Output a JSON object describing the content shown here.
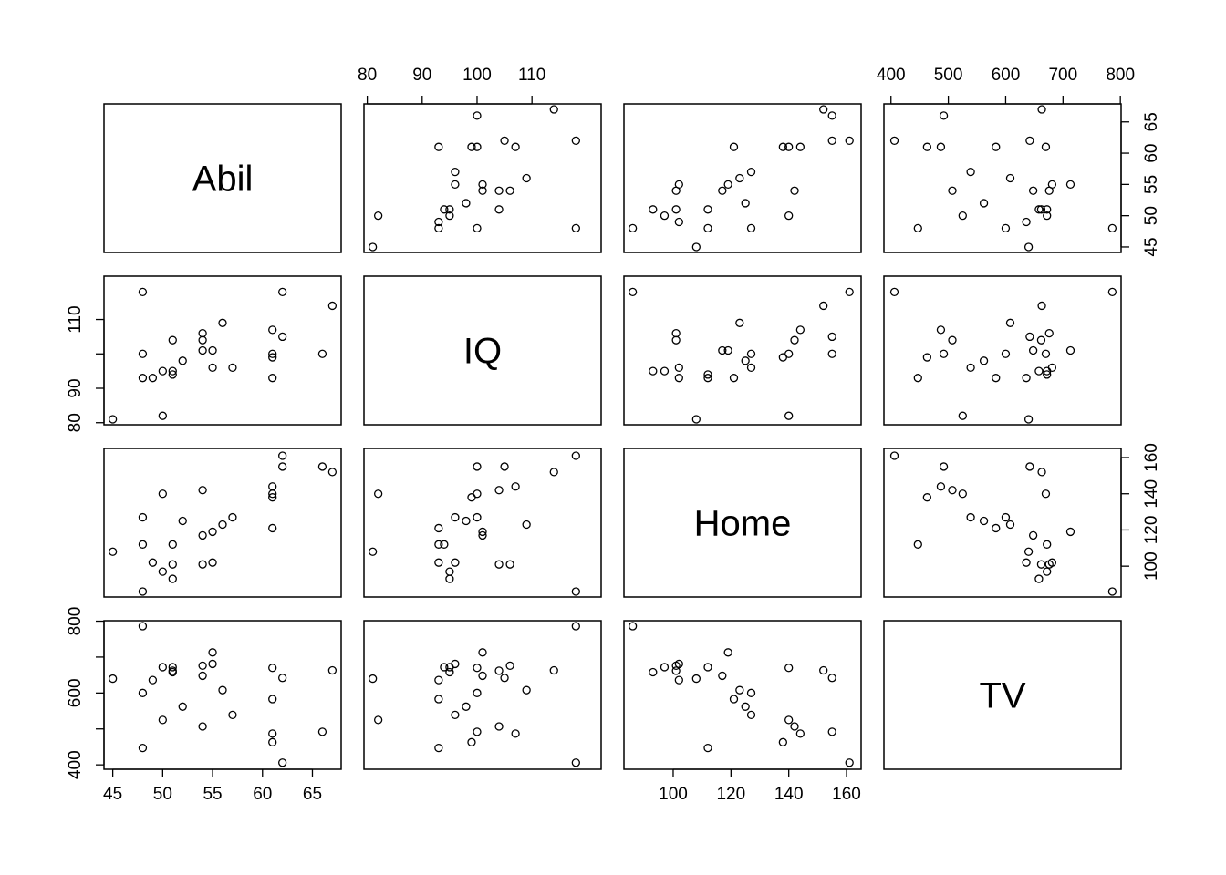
{
  "chart_data": {
    "type": "scatter",
    "variables": [
      "Abil",
      "IQ",
      "Home",
      "TV"
    ],
    "ranges": {
      "Abil": [
        45,
        67
      ],
      "IQ": [
        81,
        121
      ],
      "Home": [
        86,
        162
      ],
      "TV": [
        403,
        786
      ]
    },
    "ticks": {
      "Abil": [
        45,
        50,
        55,
        60,
        65
      ],
      "IQ": [
        80,
        90,
        100,
        110
      ],
      "Home": [
        100,
        120,
        140,
        160
      ],
      "TV": [
        400,
        500,
        600,
        700,
        800
      ]
    },
    "left_ticks": {
      "Abil": [
        45,
        55,
        65
      ],
      "IQ": [
        80,
        90,
        110
      ],
      "Home": [
        100,
        140
      ],
      "TV": [
        400,
        600,
        800
      ]
    },
    "observations": [
      {
        "Abil": 61,
        "IQ": 107,
        "Home": 144,
        "TV": 487
      },
      {
        "Abil": 56,
        "IQ": 109,
        "Home": 123,
        "TV": 608
      },
      {
        "Abil": 45,
        "IQ": 81,
        "Home": 108,
        "TV": 640
      },
      {
        "Abil": 48,
        "IQ": 100,
        "Home": 127,
        "TV": 600
      },
      {
        "Abil": 57,
        "IQ": 96,
        "Home": 127,
        "TV": 539
      },
      {
        "Abil": 51,
        "IQ": 104,
        "Home": 101,
        "TV": 662
      },
      {
        "Abil": 61,
        "IQ": 93,
        "Home": 121,
        "TV": 583
      },
      {
        "Abil": 66,
        "IQ": 100,
        "Home": 155,
        "TV": 492
      },
      {
        "Abil": 49,
        "IQ": 93,
        "Home": 102,
        "TV": 636
      },
      {
        "Abil": 55,
        "IQ": 96,
        "Home": 102,
        "TV": 681
      },
      {
        "Abil": 62,
        "IQ": 118,
        "Home": 161,
        "TV": 406
      },
      {
        "Abil": 48,
        "IQ": 118,
        "Home": 86,
        "TV": 786
      },
      {
        "Abil": 54,
        "IQ": 101,
        "Home": 117,
        "TV": 648
      },
      {
        "Abil": 48,
        "IQ": 93,
        "Home": 112,
        "TV": 447
      },
      {
        "Abil": 50,
        "IQ": 82,
        "Home": 140,
        "TV": 525
      },
      {
        "Abil": 61,
        "IQ": 100,
        "Home": 140,
        "TV": 670
      },
      {
        "Abil": 52,
        "IQ": 98,
        "Home": 125,
        "TV": 562
      },
      {
        "Abil": 51,
        "IQ": 94,
        "Home": 112,
        "TV": 672
      },
      {
        "Abil": 54,
        "IQ": 104,
        "Home": 142,
        "TV": 507
      },
      {
        "Abil": 55,
        "IQ": 101,
        "Home": 119,
        "TV": 713
      },
      {
        "Abil": 62,
        "IQ": 105,
        "Home": 155,
        "TV": 642
      },
      {
        "Abil": 67,
        "IQ": 114,
        "Home": 152,
        "TV": 663
      },
      {
        "Abil": 50,
        "IQ": 95,
        "Home": 97,
        "TV": 672
      },
      {
        "Abil": 54,
        "IQ": 106,
        "Home": 101,
        "TV": 676
      },
      {
        "Abil": 61,
        "IQ": 99,
        "Home": 138,
        "TV": 463
      },
      {
        "Abil": 51,
        "IQ": 95,
        "Home": 93,
        "TV": 658
      }
    ]
  }
}
